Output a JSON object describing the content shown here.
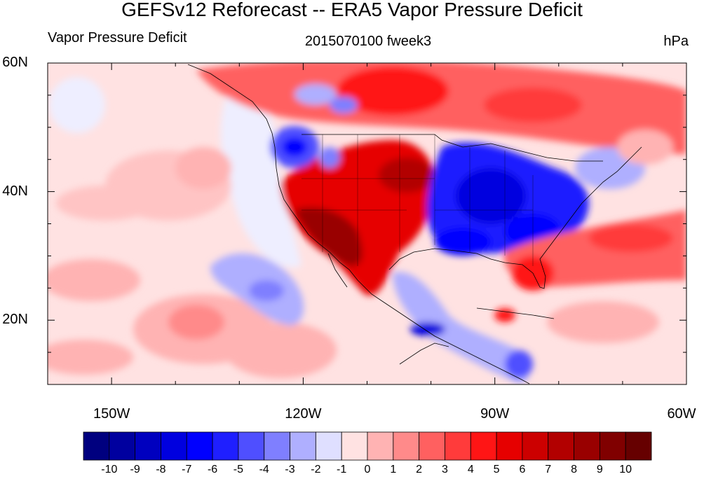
{
  "title": "GEFSv12 Reforecast -- ERA5 Vapor Pressure Deficit",
  "subtitle_left": "Vapor Pressure Deficit",
  "subtitle_center": "2015070100 fweek3",
  "subtitle_right": "hPa",
  "map": {
    "lon_range": [
      -160,
      -60
    ],
    "lat_range": [
      10,
      60
    ],
    "lat_ticks": [
      {
        "value": 60,
        "label": "60N"
      },
      {
        "value": 40,
        "label": "40N"
      },
      {
        "value": 20,
        "label": "20N"
      }
    ],
    "lon_ticks": [
      {
        "value": -150,
        "label": "150W"
      },
      {
        "value": -120,
        "label": "120W"
      },
      {
        "value": -90,
        "label": "90W"
      },
      {
        "value": -60,
        "label": "60W"
      }
    ]
  },
  "colorbar": {
    "levels": [
      "-10",
      "-9",
      "-8",
      "-7",
      "-6",
      "-5",
      "-4",
      "-3",
      "-2",
      "-1",
      "0",
      "1",
      "2",
      "3",
      "4",
      "5",
      "6",
      "7",
      "8",
      "9",
      "10"
    ],
    "colors": [
      "#00007f",
      "#00009f",
      "#0000bf",
      "#0000df",
      "#0000ff",
      "#1f1fff",
      "#4f4fff",
      "#7f7fff",
      "#afafff",
      "#dfdfff",
      "#ffe2e2",
      "#ffb3b3",
      "#ff8a8a",
      "#ff6060",
      "#ff3b3b",
      "#ff1515",
      "#e60000",
      "#cc0000",
      "#b20000",
      "#990000",
      "#800000",
      "#660000"
    ]
  }
}
